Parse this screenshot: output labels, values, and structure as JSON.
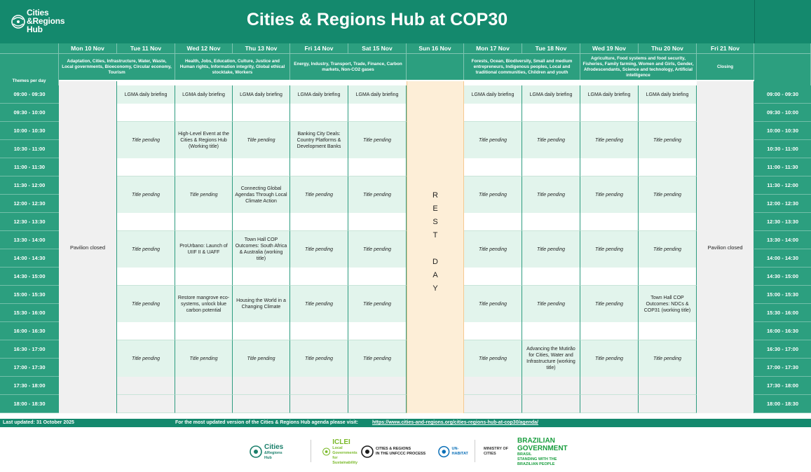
{
  "header": {
    "logo_text_lines": [
      "Cities",
      "&Regions",
      "Hub"
    ],
    "title": "Cities & Regions Hub at COP30"
  },
  "days": [
    {
      "label": "Mon 10 Nov",
      "theme": "Adaptation, Cities, Infrastructure, Water, Waste, Local governments, Bioeconomy, Circular economy, Tourism"
    },
    {
      "label": "Tue 11 Nov",
      "theme": ""
    },
    {
      "label": "Wed 12 Nov",
      "theme": "Health, Jobs, Education, Culture, Justice and Human rights, Information integrity, Global ethical stocktake, Workers"
    },
    {
      "label": "Thu 13 Nov",
      "theme": ""
    },
    {
      "label": "Fri 14 Nov",
      "theme": "Energy, Industry, Transport, Trade, Finance, Carbon markets, Non-CO2 gases"
    },
    {
      "label": "Sat 15 Nov",
      "theme": ""
    },
    {
      "label": "Sun 16 Nov",
      "theme": ""
    },
    {
      "label": "Mon 17 Nov",
      "theme": "Forests, Ocean, Biodiversity, Small and medium entrepreneurs, Indigenous peoples, Local and traditional communities, Children and youth"
    },
    {
      "label": "Tue 18 Nov",
      "theme": ""
    },
    {
      "label": "Wed 19 Nov",
      "theme": "Agriculture, Food systems and food security, Fisheries, Family farming, Women and Girls, Gender, Afrodescendants, Science and technology, Artificial intelligence"
    },
    {
      "label": "Thu 20 Nov",
      "theme": ""
    },
    {
      "label": "Fri 21 Nov",
      "theme": "Closing"
    }
  ],
  "themes_label": "Themes per day",
  "times": [
    "09:00 - 09:30",
    "09:30 - 10:00",
    "10:00 - 10:30",
    "10:30 - 11:00",
    "11:00 - 11:30",
    "11:30 - 12:00",
    "12:00 - 12:30",
    "12:30 - 13:30",
    "13:30 - 14:00",
    "14:00 - 14:30",
    "14:30 - 15:00",
    "15:00 - 15:30",
    "15:30 - 16:00",
    "16:00 - 16:30",
    "16:30 - 17:00",
    "17:00 - 17:30",
    "17:30 - 18:00",
    "18:00 - 18:30"
  ],
  "briefing": "LGMA daily briefing",
  "pavilion_closed": "Pavilion closed",
  "rest_day_letters": [
    "R",
    "E",
    "S",
    "T",
    "",
    "D",
    "A",
    "Y"
  ],
  "blocks": [
    {
      "day": 1,
      "block": 0,
      "text": "Title pending",
      "pending": true
    },
    {
      "day": 2,
      "block": 0,
      "text": "High-Level Event at the Cities & Regions Hub (Working title)",
      "pending": false
    },
    {
      "day": 3,
      "block": 0,
      "text": "Title pending",
      "pending": true
    },
    {
      "day": 4,
      "block": 0,
      "text": "Banking City Deals: Country Platforms & Development Banks",
      "pending": false
    },
    {
      "day": 5,
      "block": 0,
      "text": "Title pending",
      "pending": true
    },
    {
      "day": 7,
      "block": 0,
      "text": "Title pending",
      "pending": true
    },
    {
      "day": 8,
      "block": 0,
      "text": "Title pending",
      "pending": true
    },
    {
      "day": 9,
      "block": 0,
      "text": "Title pending",
      "pending": true
    },
    {
      "day": 10,
      "block": 0,
      "text": "Title pending",
      "pending": true
    },
    {
      "day": 1,
      "block": 1,
      "text": "Title pending",
      "pending": true
    },
    {
      "day": 2,
      "block": 1,
      "text": "Title pending",
      "pending": true
    },
    {
      "day": 3,
      "block": 1,
      "text": "Connecting Global Agendas Through Local Climate Action",
      "pending": false
    },
    {
      "day": 4,
      "block": 1,
      "text": "Title pending",
      "pending": true
    },
    {
      "day": 5,
      "block": 1,
      "text": "Title pending",
      "pending": true
    },
    {
      "day": 7,
      "block": 1,
      "text": "Title pending",
      "pending": true
    },
    {
      "day": 8,
      "block": 1,
      "text": "Title pending",
      "pending": true
    },
    {
      "day": 9,
      "block": 1,
      "text": "Title pending",
      "pending": true
    },
    {
      "day": 10,
      "block": 1,
      "text": "Title pending",
      "pending": true
    },
    {
      "day": 1,
      "block": 2,
      "text": "Title pending",
      "pending": true
    },
    {
      "day": 2,
      "block": 2,
      "text": "ProUrbano: Launch of UIIF II & UAFF",
      "pending": false
    },
    {
      "day": 3,
      "block": 2,
      "text": "Town Hall COP Outcomes: South Africa & Australia (working title)",
      "pending": false
    },
    {
      "day": 4,
      "block": 2,
      "text": "Title pending",
      "pending": true
    },
    {
      "day": 5,
      "block": 2,
      "text": "Title pending",
      "pending": true
    },
    {
      "day": 7,
      "block": 2,
      "text": "Title pending",
      "pending": true
    },
    {
      "day": 8,
      "block": 2,
      "text": "Title pending",
      "pending": true
    },
    {
      "day": 9,
      "block": 2,
      "text": "Title pending",
      "pending": true
    },
    {
      "day": 10,
      "block": 2,
      "text": "Title pending",
      "pending": true
    },
    {
      "day": 1,
      "block": 3,
      "text": "Title pending",
      "pending": true
    },
    {
      "day": 2,
      "block": 3,
      "text": "Restore mangrove eco-systems, unlock blue carbon potential",
      "pending": false
    },
    {
      "day": 3,
      "block": 3,
      "text": "Housing the World in a Changing Climate",
      "pending": false
    },
    {
      "day": 4,
      "block": 3,
      "text": "Title pending",
      "pending": true
    },
    {
      "day": 5,
      "block": 3,
      "text": "Title pending",
      "pending": true
    },
    {
      "day": 7,
      "block": 3,
      "text": "Title pending",
      "pending": true
    },
    {
      "day": 8,
      "block": 3,
      "text": "Title pending",
      "pending": true
    },
    {
      "day": 9,
      "block": 3,
      "text": "Title pending",
      "pending": true
    },
    {
      "day": 10,
      "block": 3,
      "text": "Town Hall COP Outcomes: NDCs & COP31 (working title)",
      "pending": false
    },
    {
      "day": 1,
      "block": 4,
      "text": "Title pending",
      "pending": true
    },
    {
      "day": 2,
      "block": 4,
      "text": "Title pending",
      "pending": true
    },
    {
      "day": 3,
      "block": 4,
      "text": "Title pending",
      "pending": true
    },
    {
      "day": 4,
      "block": 4,
      "text": "Title pending",
      "pending": true
    },
    {
      "day": 5,
      "block": 4,
      "text": "Title pending",
      "pending": true
    },
    {
      "day": 7,
      "block": 4,
      "text": "Title pending",
      "pending": true
    },
    {
      "day": 8,
      "block": 4,
      "text": "Advancing the Mutirão for Cities, Water and Infrastructure (working title)",
      "pending": false
    },
    {
      "day": 9,
      "block": 4,
      "text": "Title pending",
      "pending": true
    },
    {
      "day": 10,
      "block": 4,
      "text": "Title pending",
      "pending": true
    }
  ],
  "footer": {
    "updated": "Last updated: 31 October 2025",
    "visit": "For the most updated version of the Cities & Regions Hub agenda please visit:",
    "link": "https://www.cities-and-regions.org/cities-regions-hub-at-cop30/agenda/"
  },
  "partners": [
    {
      "name": "Cities & Regions Hub",
      "lines": [
        "Cities",
        "&Regions",
        "Hub"
      ],
      "color": "#1a7f6b"
    },
    {
      "name": "ICLEI",
      "lines": [
        "ICLEI",
        "Local Governments",
        "for Sustainability"
      ],
      "color": "#7ab929"
    },
    {
      "name": "Cities & Regions in the UNFCCC Process",
      "lines": [
        "CITIES & REGIONS",
        "IN THE UNFCCC PROCESS"
      ],
      "color": "#1a1a1a"
    },
    {
      "name": "UN-Habitat",
      "lines": [
        "UN-HABITAT"
      ],
      "color": "#0a6fb7"
    },
    {
      "name": "Ministry of Cities",
      "lines": [
        "MINISTRY OF",
        "CITIES"
      ],
      "color": "#333333"
    },
    {
      "name": "Brazilian Government",
      "lines": [
        "BRAZILIAN GOVERNMENT",
        "BRASIL",
        "STANDING WITH THE BRAZILIAN PEOPLE"
      ],
      "color": "#1a9e3f"
    }
  ]
}
